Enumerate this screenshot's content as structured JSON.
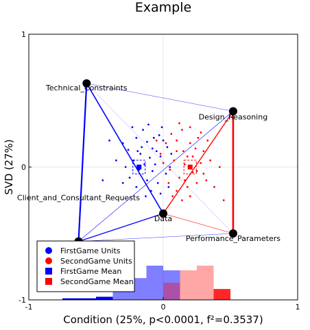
{
  "chart_data": {
    "type": "scatter",
    "title": "Example",
    "xlabel": "Condition (25%, p<0.0001, f²=0.3537)",
    "ylabel": "SVD (27%)",
    "xlim": [
      -1,
      1
    ],
    "ylim": [
      -1,
      1
    ],
    "xticks": [
      "-1",
      "0",
      "1"
    ],
    "yticks": [
      "-1",
      "0",
      "1"
    ],
    "grid": true,
    "legend_position": "bottom-left",
    "colors": {
      "first": "#0000ff",
      "second": "#ff0000",
      "node": "#000000"
    },
    "nodes": [
      {
        "name": "Technical_Constraints",
        "x": -0.57,
        "y": 0.63
      },
      {
        "name": "Design_Reasoning",
        "x": 0.52,
        "y": 0.42
      },
      {
        "name": "Performance_Parameters",
        "x": 0.52,
        "y": -0.5
      },
      {
        "name": "Data",
        "x": 0.0,
        "y": -0.35
      },
      {
        "name": "Client_and_Consultant_Requests",
        "x": -0.63,
        "y": -0.56
      }
    ],
    "series": [
      {
        "name": "FirstGame Units",
        "points": [
          [
            -0.3,
            0.18
          ],
          [
            -0.26,
            0.13
          ],
          [
            -0.2,
            0.22
          ],
          [
            -0.15,
            0.28
          ],
          [
            -0.12,
            0.19
          ],
          [
            -0.08,
            0.14
          ],
          [
            -0.03,
            0.24
          ],
          [
            0.0,
            0.2
          ],
          [
            -0.17,
            0.1
          ],
          [
            -0.22,
            0.05
          ],
          [
            -0.1,
            0.07
          ],
          [
            -0.05,
            0.12
          ],
          [
            -0.14,
            0.02
          ],
          [
            -0.28,
            0.0
          ],
          [
            -0.18,
            -0.02
          ],
          [
            -0.08,
            -0.03
          ],
          [
            -0.02,
            0.08
          ],
          [
            0.03,
            0.15
          ],
          [
            -0.25,
            -0.08
          ],
          [
            -0.12,
            -0.1
          ],
          [
            -0.04,
            -0.12
          ],
          [
            -0.2,
            -0.15
          ],
          [
            -0.09,
            -0.18
          ],
          [
            0.02,
            -0.05
          ],
          [
            -0.06,
            0.02
          ],
          [
            -0.16,
            0.15
          ],
          [
            -0.23,
            0.3
          ],
          [
            -0.11,
            0.32
          ],
          [
            -0.35,
            0.05
          ],
          [
            -0.02,
            -0.2
          ],
          [
            0.05,
            0.0
          ],
          [
            -0.13,
            -0.22
          ],
          [
            -0.3,
            -0.12
          ],
          [
            -0.01,
            0.3
          ],
          [
            0.04,
            -0.15
          ],
          [
            -0.07,
            0.22
          ],
          [
            -0.4,
            0.2
          ],
          [
            -0.19,
            0.12
          ],
          [
            -0.45,
            -0.1
          ],
          [
            0.06,
            0.1
          ]
        ]
      },
      {
        "name": "SecondGame Units",
        "points": [
          [
            0.1,
            0.2
          ],
          [
            0.15,
            0.12
          ],
          [
            0.22,
            0.08
          ],
          [
            0.28,
            0.03
          ],
          [
            0.3,
            -0.05
          ],
          [
            0.25,
            -0.12
          ],
          [
            0.18,
            -0.15
          ],
          [
            0.12,
            -0.08
          ],
          [
            0.05,
            -0.02
          ],
          [
            0.08,
            0.05
          ],
          [
            0.2,
            0.18
          ],
          [
            0.14,
            0.28
          ],
          [
            0.1,
            -0.18
          ],
          [
            0.24,
            0.14
          ],
          [
            0.16,
            0.02
          ],
          [
            0.02,
            0.18
          ],
          [
            0.32,
            -0.1
          ],
          [
            0.06,
            0.25
          ],
          [
            0.2,
            -0.22
          ],
          [
            0.12,
            0.33
          ],
          [
            -0.02,
            0.1
          ],
          [
            0.26,
            0.22
          ],
          [
            0.35,
            0.05
          ],
          [
            0.04,
            -0.12
          ],
          [
            0.18,
            0.08
          ],
          [
            0.38,
            -0.15
          ],
          [
            0.1,
            0.12
          ],
          [
            0.22,
            -0.04
          ],
          [
            0.3,
            0.12
          ],
          [
            0.14,
            -0.25
          ],
          [
            -0.05,
            0.2
          ],
          [
            0.42,
            0.0
          ],
          [
            0.2,
            0.3
          ],
          [
            0.07,
            -0.22
          ],
          [
            0.25,
            -0.03
          ],
          [
            0.0,
            0.03
          ],
          [
            0.33,
            0.2
          ],
          [
            0.16,
            -0.1
          ],
          [
            0.45,
            -0.25
          ],
          [
            0.28,
            0.26
          ]
        ]
      },
      {
        "name": "FirstGame Mean",
        "points": [
          [
            -0.18,
            0.0
          ]
        ]
      },
      {
        "name": "SecondGame Mean",
        "points": [
          [
            0.2,
            0.0
          ]
        ]
      }
    ],
    "histogram": {
      "bins": [
        -0.75,
        -0.625,
        -0.5,
        -0.375,
        -0.25,
        -0.125,
        0.0,
        0.125,
        0.25,
        0.375,
        0.5
      ],
      "first_counts": [
        1,
        1,
        2,
        9,
        14,
        22,
        19,
        0,
        0,
        0,
        0
      ],
      "second_counts": [
        0,
        0,
        0,
        0,
        0,
        0,
        11,
        19,
        22,
        7,
        2
      ]
    }
  }
}
